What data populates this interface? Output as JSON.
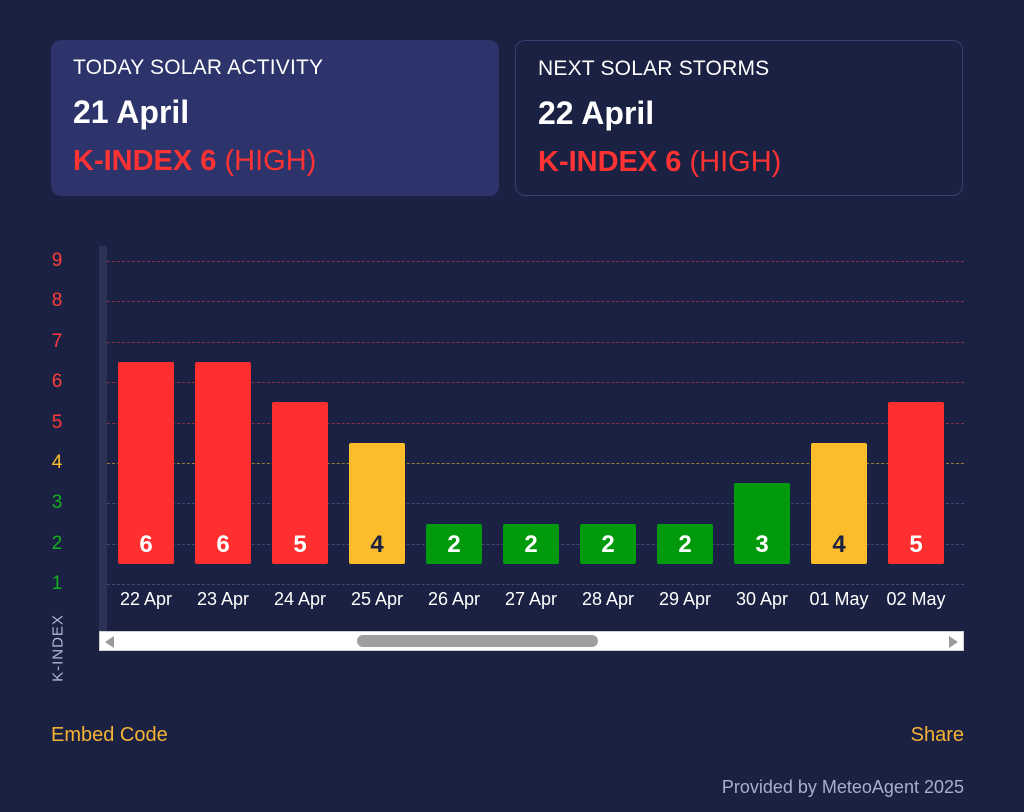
{
  "cards": {
    "today": {
      "label": "TODAY SOLAR ACTIVITY",
      "date": "21 April",
      "kindex": "K-INDEX 6",
      "level": "(HIGH)"
    },
    "next": {
      "label": "NEXT SOLAR STORMS",
      "date": "22 April",
      "kindex": "K-INDEX 6",
      "level": "(HIGH)"
    }
  },
  "chart_data": {
    "type": "bar",
    "ylabel": "K-INDEX",
    "ylim": [
      1,
      9
    ],
    "yticks": [
      1,
      2,
      3,
      4,
      5,
      6,
      7,
      8,
      9
    ],
    "grid": true,
    "categories": [
      "22 Apr",
      "23 Apr",
      "24 Apr",
      "25 Apr",
      "26 Apr",
      "27 Apr",
      "28 Apr",
      "29 Apr",
      "30 Apr",
      "01 May",
      "02 May"
    ],
    "values": [
      6,
      6,
      5,
      4,
      2,
      2,
      2,
      2,
      3,
      4,
      5
    ],
    "colors": {
      "high": "#ff2f2f",
      "moderate": "#fbbd2c",
      "low": "#019a0d",
      "tick_high": "#ff3c3c",
      "tick_moderate": "#fbbd2c",
      "tick_low": "#12b01c",
      "grid_high": "#8a3046",
      "grid_moderate": "#9a7a3a",
      "grid_low": "#3f4a78"
    }
  },
  "links": {
    "embed": "Embed Code",
    "share": "Share"
  },
  "footer": {
    "credit": "Provided by MeteoAgent 2025"
  }
}
